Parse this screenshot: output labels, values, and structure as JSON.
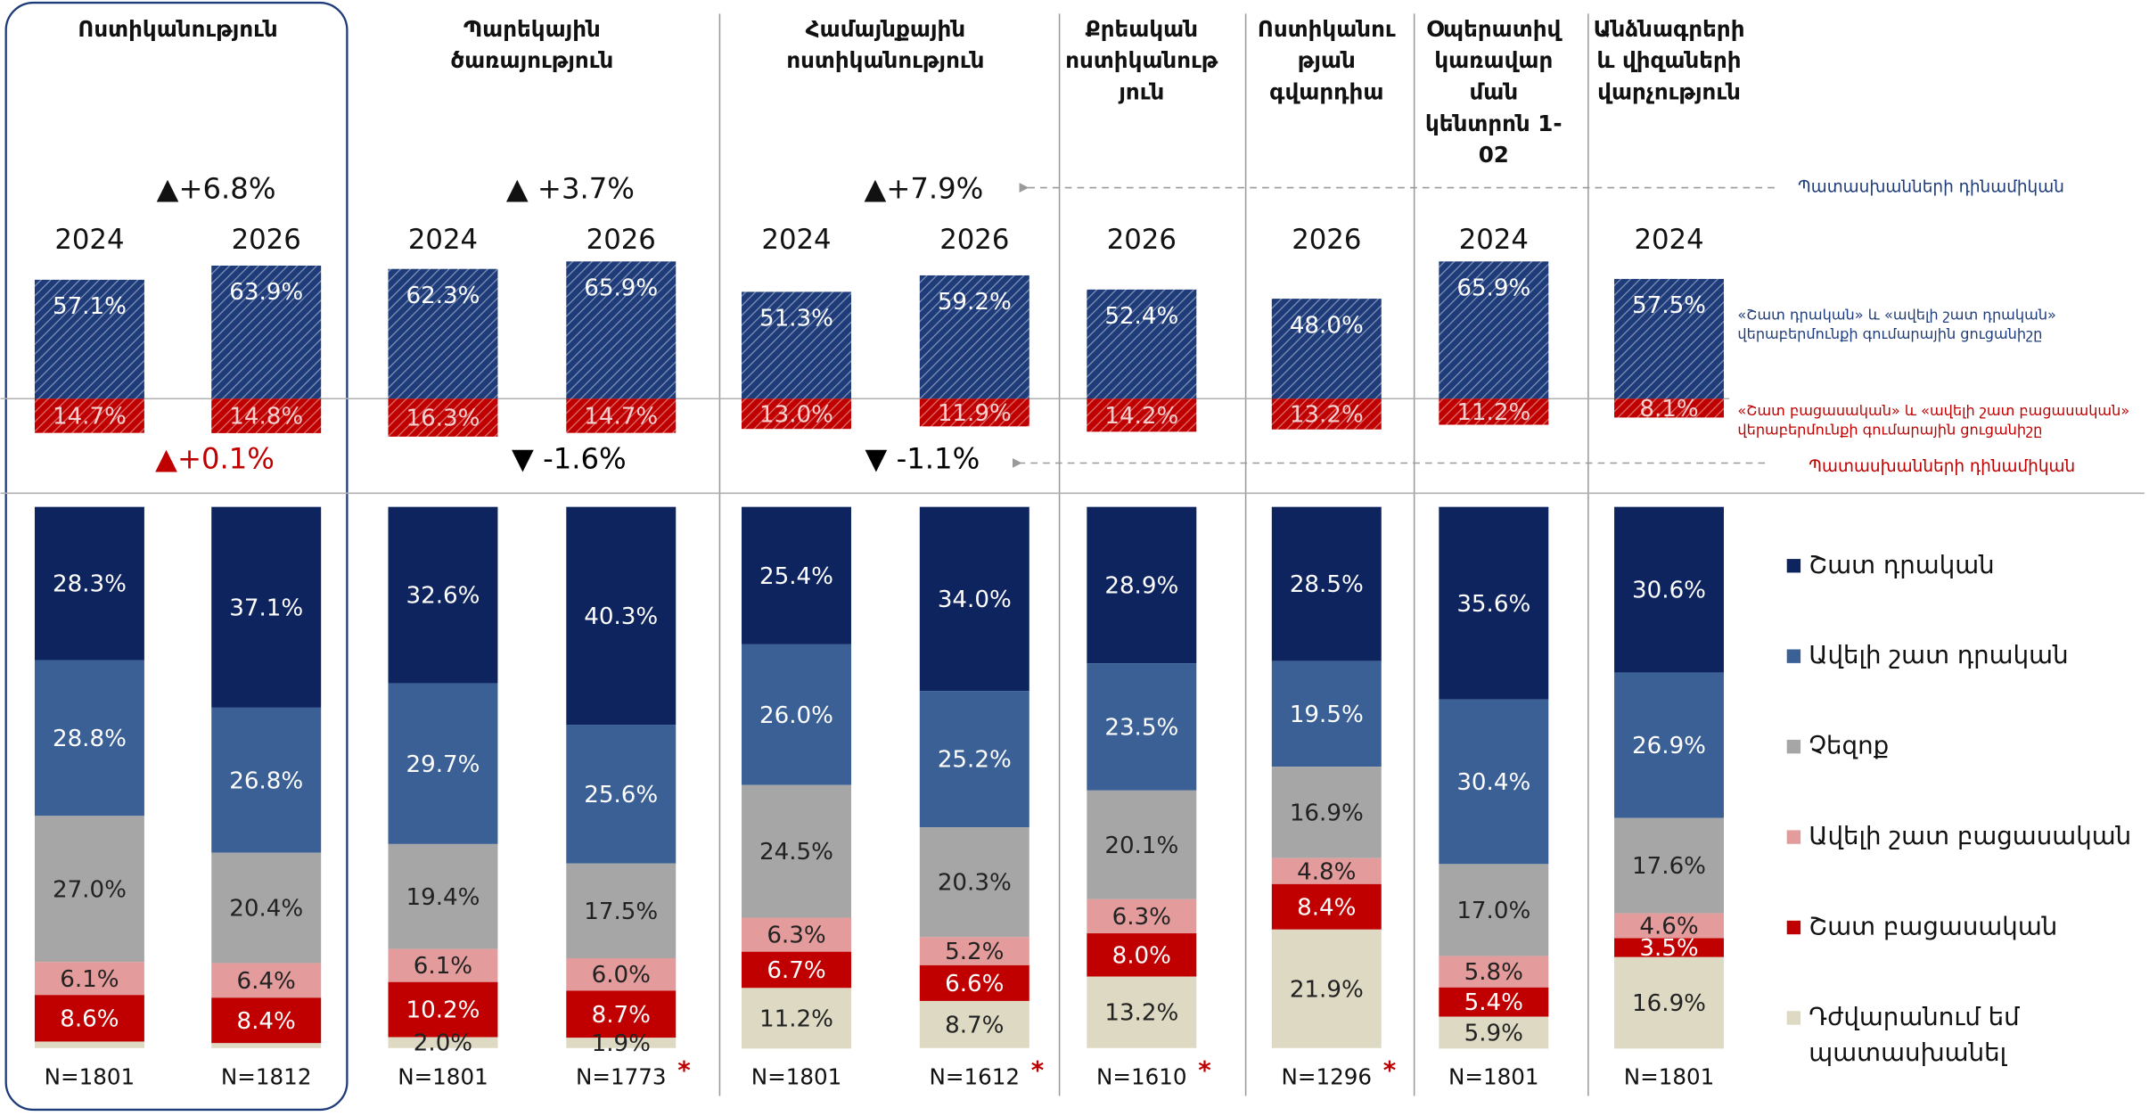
{
  "chart_data": {
    "type": "stacked_bar",
    "series": [
      {
        "name": "Շատ դրական",
        "color": "#0e245e",
        "label_color": "#ffffff"
      },
      {
        "name": "Ավելի շատ դրական",
        "color": "#3a6095",
        "label_color": "#ffffff"
      },
      {
        "name": "Չեզոք",
        "color": "#a6a6a6",
        "label_color": "#222222"
      },
      {
        "name": "Ավելի շատ բացասական",
        "color": "#e39b9b",
        "label_color": "#222222"
      },
      {
        "name": "Շատ բացասական",
        "color": "#c00000",
        "label_color": "#ffffff"
      },
      {
        "name": "Դժվարանում եմ\nպատասխանել",
        "color": "#ddd9c3",
        "label_color": "#222222"
      }
    ],
    "net_series": [
      {
        "name": "«Շատ դրական» և «ավելի շատ դրական»\nվերաբերմունքի գումարային ցուցանիշը",
        "color": "#1f3c7a",
        "label_color": "#ffffff"
      },
      {
        "name": "«Շատ բացասական» և «ավելի շատ բացասական»\nվերաբերմունքի գումարային ցուցանիշը",
        "color": "#c00000",
        "label_color": "#f3d0d0"
      }
    ],
    "dynamics_label": "Պատասխանների դինամիկան",
    "flag_marker": "*",
    "groups": [
      {
        "title": "Ոստիկանություն",
        "changes": {
          "positive": "▲+6.8%",
          "negative": "▲+0.1%",
          "negative_color": "#c00000"
        },
        "columns": [
          {
            "category": "2024",
            "n_label": "N=1801",
            "flagged": false,
            "net_values": [
              57.1,
              14.7
            ],
            "net_value_labels": [
              "57.1%",
              "14.7%"
            ],
            "values": [
              28.3,
              28.8,
              27.0,
              6.1,
              8.6,
              1.2
            ],
            "value_labels": [
              "28.3%",
              "28.8%",
              "27.0%",
              "6.1%",
              "8.6%",
              null
            ]
          },
          {
            "category": "2026",
            "n_label": "N=1812",
            "flagged": false,
            "net_values": [
              63.9,
              14.8
            ],
            "net_value_labels": [
              "63.9%",
              "14.8%"
            ],
            "values": [
              37.1,
              26.8,
              20.4,
              6.4,
              8.4,
              0.9
            ],
            "value_labels": [
              "37.1%",
              "26.8%",
              "20.4%",
              "6.4%",
              "8.4%",
              null
            ]
          }
        ]
      },
      {
        "title": "Պարեկային\nծառայություն",
        "changes": {
          "positive": "▲ +3.7%",
          "negative": "▼ -1.6%",
          "negative_color": "#000000"
        },
        "columns": [
          {
            "category": "2024",
            "n_label": "N=1801",
            "flagged": false,
            "net_values": [
              62.3,
              16.3
            ],
            "net_value_labels": [
              "62.3%",
              "16.3%"
            ],
            "values": [
              32.6,
              29.7,
              19.4,
              6.1,
              10.2,
              2.0
            ],
            "value_labels": [
              "32.6%",
              "29.7%",
              "19.4%",
              "6.1%",
              "10.2%",
              "2.0%"
            ]
          },
          {
            "category": "2026",
            "n_label": "N=1773",
            "flagged": true,
            "net_values": [
              65.9,
              14.7
            ],
            "net_value_labels": [
              "65.9%",
              "14.7%"
            ],
            "values": [
              40.3,
              25.6,
              17.5,
              6.0,
              8.7,
              1.9
            ],
            "value_labels": [
              "40.3%",
              "25.6%",
              "17.5%",
              "6.0%",
              "8.7%",
              "1.9%"
            ]
          }
        ]
      },
      {
        "title": "Համայնքային\nոստիկանություն",
        "changes": {
          "positive": "▲+7.9%",
          "negative": "▼ -1.1%",
          "negative_color": "#000000"
        },
        "columns": [
          {
            "category": "2024",
            "n_label": "N=1801",
            "flagged": false,
            "net_values": [
              51.3,
              13.0
            ],
            "net_value_labels": [
              "51.3%",
              "13.0%"
            ],
            "values": [
              25.4,
              26.0,
              24.5,
              6.3,
              6.7,
              11.2
            ],
            "value_labels": [
              "25.4%",
              "26.0%",
              "24.5%",
              "6.3%",
              "6.7%",
              "11.2%"
            ]
          },
          {
            "category": "2026",
            "n_label": "N=1612",
            "flagged": true,
            "net_values": [
              59.2,
              11.9
            ],
            "net_value_labels": [
              "59.2%",
              "11.9%"
            ],
            "values": [
              34.0,
              25.2,
              20.3,
              5.2,
              6.6,
              8.7
            ],
            "value_labels": [
              "34.0%",
              "25.2%",
              "20.3%",
              "5.2%",
              "6.6%",
              "8.7%"
            ]
          }
        ]
      },
      {
        "title": "Քրեական\nոստիկանութ\nյուն",
        "columns": [
          {
            "category": "2026",
            "n_label": "N=1610",
            "flagged": true,
            "net_values": [
              52.4,
              14.2
            ],
            "net_value_labels": [
              "52.4%",
              "14.2%"
            ],
            "values": [
              28.9,
              23.5,
              20.1,
              6.3,
              8.0,
              13.2
            ],
            "value_labels": [
              "28.9%",
              "23.5%",
              "20.1%",
              "6.3%",
              "8.0%",
              "13.2%"
            ]
          }
        ]
      },
      {
        "title": "Ոստիկանու\nթյան\nգվարդիա",
        "columns": [
          {
            "category": "2026",
            "n_label": "N=1296",
            "flagged": true,
            "net_values": [
              48.0,
              13.2
            ],
            "net_value_labels": [
              "48.0%",
              "13.2%"
            ],
            "values": [
              28.5,
              19.5,
              16.9,
              4.8,
              8.4,
              21.9
            ],
            "value_labels": [
              "28.5%",
              "19.5%",
              "16.9%",
              "4.8%",
              "8.4%",
              "21.9%"
            ]
          }
        ]
      },
      {
        "title": "Օպերատիվ\nկառավար\nման\nկենտրոն 1-\n02",
        "columns": [
          {
            "category": "2024",
            "n_label": "N=1801",
            "flagged": false,
            "net_values": [
              65.9,
              11.2
            ],
            "net_value_labels": [
              "65.9%",
              "11.2%"
            ],
            "values": [
              35.6,
              30.4,
              17.0,
              5.8,
              5.4,
              5.9
            ],
            "value_labels": [
              "35.6%",
              "30.4%",
              "17.0%",
              "5.8%",
              "5.4%",
              "5.9%"
            ]
          }
        ]
      },
      {
        "title": "Անձնագրերի\nև վիզաների\nվարչություն",
        "columns": [
          {
            "category": "2024",
            "n_label": "N=1801",
            "flagged": false,
            "net_values": [
              57.5,
              8.1
            ],
            "net_value_labels": [
              "57.5%",
              "8.1%"
            ],
            "values": [
              30.6,
              26.9,
              17.6,
              4.6,
              3.5,
              16.9
            ],
            "value_labels": [
              "30.6%",
              "26.9%",
              "17.6%",
              "4.6%",
              "3.5%",
              "16.9%"
            ]
          }
        ]
      }
    ]
  }
}
